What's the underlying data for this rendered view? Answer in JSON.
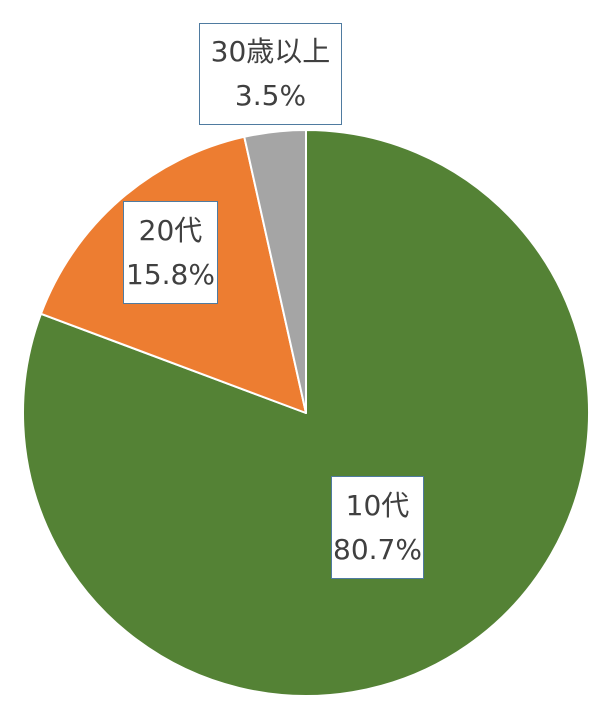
{
  "chart_data": {
    "type": "pie",
    "start_angle_deg": 0,
    "direction": "clockwise",
    "slices": [
      {
        "label": "10代",
        "value": 80.7,
        "percent_text": "80.7%",
        "color": "#548235"
      },
      {
        "label": "20代",
        "value": 15.8,
        "percent_text": "15.8%",
        "color": "#ED7D31"
      },
      {
        "label": "30歳以上",
        "value": 3.5,
        "percent_text": "3.5%",
        "color": "#A5A5A5"
      }
    ],
    "slice_border_color": "#FFFFFF",
    "label_border_color": "#4F7BA0"
  }
}
